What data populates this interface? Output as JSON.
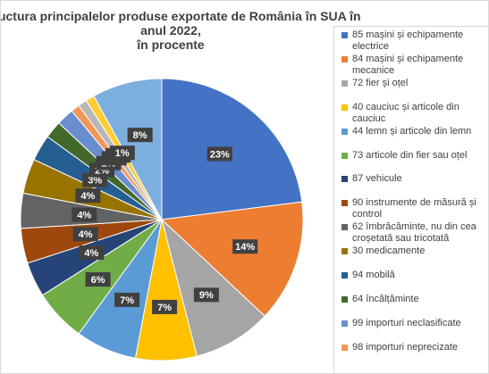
{
  "chart_data": {
    "type": "pie",
    "title": [
      "Structura principalelor produse exportate de România în SUA în",
      "anul 2022,",
      "în procente"
    ],
    "categories": [
      "85 mașini și echipamente electrice",
      "84 mașini și echipamente mecanice",
      "72 fier și oțel",
      "40 cauciuc și articole din cauciuc",
      "44 lemn și articole din lemn",
      "73 articole din fier sau oțel",
      "87 vehicule",
      "90 instrumente de măsură și control",
      "62 îmbrăcăminte, nu din cea croșetată sau tricotată",
      "30 medicamente",
      "94 mobilă",
      "64 încălțăminte",
      "99 importuri neclasificate",
      "98 importuri neprecizate",
      null,
      null,
      null
    ],
    "values": [
      23,
      14,
      9,
      7,
      7,
      6,
      4,
      4,
      4,
      4,
      3,
      2,
      2,
      1,
      1,
      1,
      8
    ],
    "value_labels": [
      "23%",
      "14%",
      "9%",
      "7%",
      "7%",
      "6%",
      "4%",
      "4%",
      "4%",
      "4%",
      "3%",
      "2%",
      "2%",
      "1%",
      "1%",
      "1%",
      "8%"
    ],
    "colors": [
      "#4472c4",
      "#ed7d31",
      "#a5a5a5",
      "#ffc000",
      "#5b9bd5",
      "#70ad47",
      "#264478",
      "#9e480e",
      "#636363",
      "#997300",
      "#255e91",
      "#43682b",
      "#698ed0",
      "#f1975a",
      "#b7b7b7",
      "#ffcd33",
      "#7cafdd"
    ]
  }
}
